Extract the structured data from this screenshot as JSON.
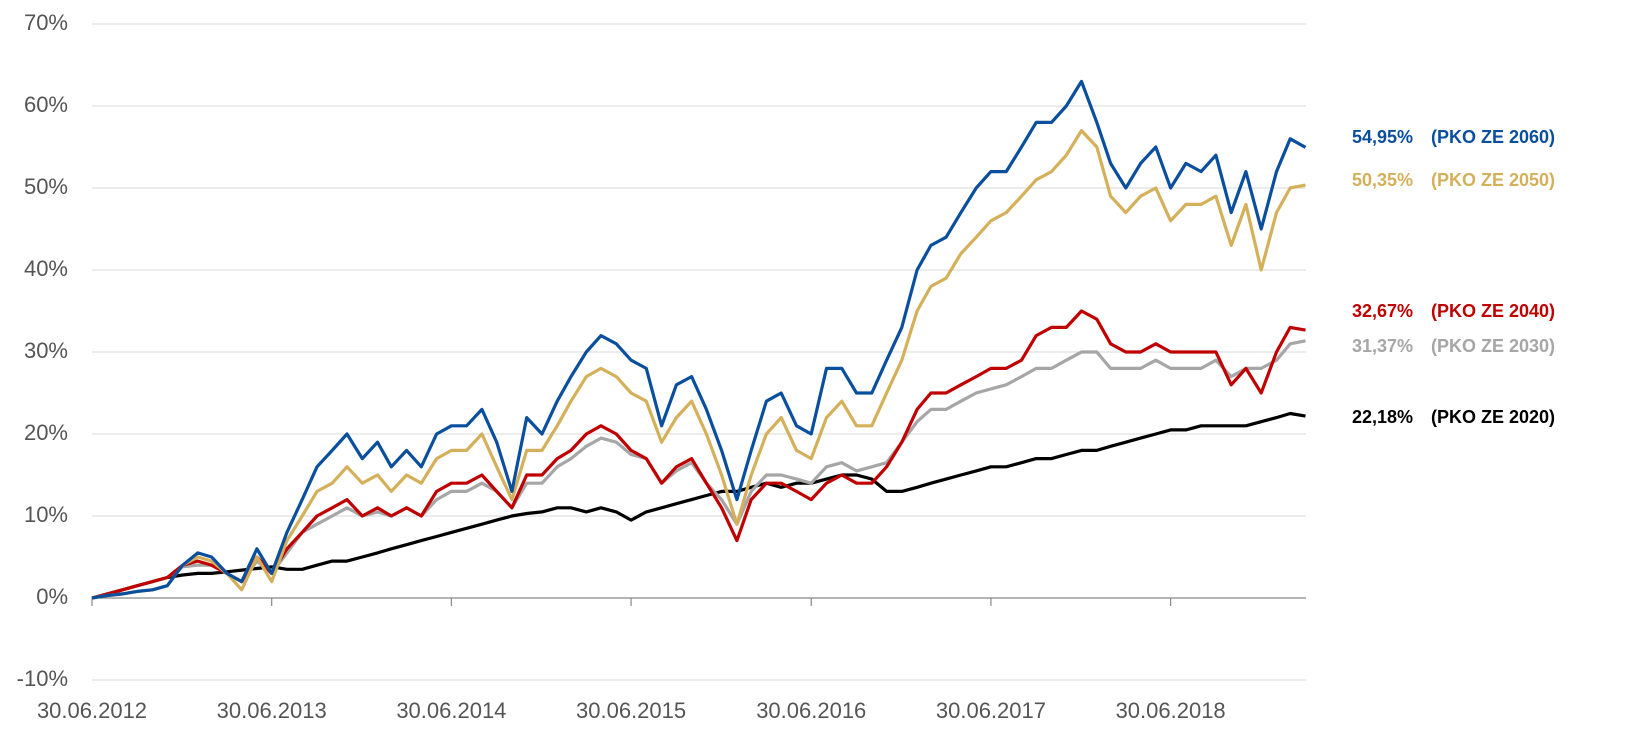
{
  "chart_data": {
    "type": "line",
    "x": [
      "2012-06-30",
      "2012-07-31",
      "2012-08-31",
      "2012-09-30",
      "2012-10-31",
      "2012-11-30",
      "2012-12-31",
      "2013-01-31",
      "2013-02-28",
      "2013-03-31",
      "2013-04-30",
      "2013-05-31",
      "2013-06-30",
      "2013-07-31",
      "2013-08-31",
      "2013-09-30",
      "2013-10-31",
      "2013-11-30",
      "2013-12-31",
      "2014-01-31",
      "2014-02-28",
      "2014-03-31",
      "2014-04-30",
      "2014-05-31",
      "2014-06-30",
      "2014-07-31",
      "2014-08-31",
      "2014-09-30",
      "2014-10-31",
      "2014-11-30",
      "2014-12-31",
      "2015-01-31",
      "2015-02-28",
      "2015-03-31",
      "2015-04-30",
      "2015-05-31",
      "2015-06-30",
      "2015-07-31",
      "2015-08-31",
      "2015-09-30",
      "2015-10-31",
      "2015-11-30",
      "2015-12-31",
      "2016-01-31",
      "2016-02-29",
      "2016-03-31",
      "2016-04-30",
      "2016-05-31",
      "2016-06-30",
      "2016-07-31",
      "2016-08-31",
      "2016-09-30",
      "2016-10-31",
      "2016-11-30",
      "2016-12-31",
      "2017-01-31",
      "2017-02-28",
      "2017-03-31",
      "2017-04-30",
      "2017-05-31",
      "2017-06-30",
      "2017-07-31",
      "2017-08-31",
      "2017-09-30",
      "2017-10-31",
      "2017-11-30",
      "2017-12-31",
      "2018-01-31",
      "2018-02-28",
      "2018-03-31",
      "2018-04-30",
      "2018-05-31",
      "2018-06-30",
      "2018-07-31",
      "2018-08-31",
      "2018-09-30",
      "2018-10-31",
      "2018-11-30",
      "2018-12-31",
      "2019-01-31",
      "2019-02-28",
      "2019-03-31"
    ],
    "series": [
      {
        "name": "(PKO ZE 2020)",
        "end_label": "22,18%",
        "color": "#000000",
        "values": [
          0,
          0.5,
          1,
          1.5,
          2,
          2.5,
          2.8,
          3,
          3,
          3.2,
          3.4,
          3.6,
          3.8,
          3.5,
          3.5,
          4,
          4.5,
          4.5,
          5,
          5.5,
          6,
          6.5,
          7,
          7.5,
          8,
          8.5,
          9,
          9.5,
          10,
          10.3,
          10.5,
          11,
          11,
          10.5,
          11,
          10.5,
          9.5,
          10.5,
          11,
          11.5,
          12,
          12.5,
          13,
          13,
          13.5,
          14,
          13.5,
          14,
          14,
          14.5,
          15,
          15,
          14.5,
          13,
          13,
          13.5,
          14,
          14.5,
          15,
          15.5,
          16,
          16,
          16.5,
          17,
          17,
          17.5,
          18,
          18,
          18.5,
          19,
          19.5,
          20,
          20.5,
          20.5,
          21,
          21,
          21,
          21,
          21.5,
          22,
          22.5,
          22.18
        ]
      },
      {
        "name": "(PKO ZE 2030)",
        "end_label": "31,37%",
        "color": "#a6a6a6",
        "values": [
          0,
          0.5,
          1,
          1.5,
          2,
          2.5,
          3.8,
          4,
          4,
          3,
          2,
          4.5,
          3,
          5.5,
          8,
          9,
          10,
          11,
          10,
          10.5,
          10,
          11,
          10,
          12,
          13,
          13,
          14,
          13,
          11,
          14,
          14,
          16,
          17,
          18.5,
          19.5,
          19,
          17.5,
          17,
          14,
          15.5,
          16.5,
          14,
          12,
          9,
          13,
          15,
          15,
          14.5,
          14,
          16,
          16.5,
          15.5,
          16,
          16.5,
          19,
          21.5,
          23,
          23,
          24,
          25,
          25.5,
          26,
          27,
          28,
          28,
          29,
          30,
          30,
          28,
          28,
          28,
          29,
          28,
          28,
          28,
          29,
          27,
          28,
          28,
          29,
          31,
          31.37
        ]
      },
      {
        "name": "(PKO ZE 2040)",
        "end_label": "32,67%",
        "color": "#c00000",
        "values": [
          0,
          0.5,
          1,
          1.5,
          2,
          2.5,
          4,
          4.5,
          4,
          3,
          2,
          5,
          3,
          6,
          8,
          10,
          11,
          12,
          10,
          11,
          10,
          11,
          10,
          13,
          14,
          14,
          15,
          13,
          11,
          15,
          15,
          17,
          18,
          20,
          21,
          20,
          18,
          17,
          14,
          16,
          17,
          14,
          11,
          7,
          12,
          14,
          14,
          13,
          12,
          14,
          15,
          14,
          14,
          16,
          19,
          23,
          25,
          25,
          26,
          27,
          28,
          28,
          29,
          32,
          33,
          33,
          35,
          34,
          31,
          30,
          30,
          31,
          30,
          30,
          30,
          30,
          26,
          28,
          25,
          30,
          33,
          32.67
        ]
      },
      {
        "name": "(PKO ZE 2050)",
        "end_label": "50,35%",
        "color": "#d4b05a",
        "values": [
          0,
          0.3,
          0.5,
          0.8,
          1,
          1.5,
          4,
          5,
          4.5,
          3,
          1,
          5,
          2,
          7,
          10,
          13,
          14,
          16,
          14,
          15,
          13,
          15,
          14,
          17,
          18,
          18,
          20,
          16,
          12,
          18,
          18,
          21,
          24,
          27,
          28,
          27,
          25,
          24,
          19,
          22,
          24,
          20,
          15,
          9,
          15,
          20,
          22,
          18,
          17,
          22,
          24,
          21,
          21,
          25,
          29,
          35,
          38,
          39,
          42,
          44,
          46,
          47,
          49,
          51,
          52,
          54,
          57,
          55,
          49,
          47,
          49,
          50,
          46,
          48,
          48,
          49,
          43,
          48,
          40,
          47,
          50,
          50.35
        ]
      },
      {
        "name": "(PKO ZE 2060)",
        "end_label": "54,95%",
        "color": "#0a4f9e",
        "values": [
          0,
          0.3,
          0.5,
          0.8,
          1,
          1.5,
          4,
          5.5,
          5,
          3,
          2,
          6,
          3,
          8,
          12,
          16,
          18,
          20,
          17,
          19,
          16,
          18,
          16,
          20,
          21,
          21,
          23,
          19,
          13,
          22,
          20,
          24,
          27,
          30,
          32,
          31,
          29,
          28,
          21,
          26,
          27,
          23,
          18,
          12,
          18,
          24,
          25,
          21,
          20,
          28,
          28,
          25,
          25,
          29,
          33,
          40,
          43,
          44,
          47,
          50,
          52,
          52,
          55,
          58,
          58,
          60,
          63,
          58,
          53,
          50,
          53,
          55,
          50,
          53,
          52,
          54,
          47,
          52,
          45,
          52,
          56,
          54.95
        ]
      }
    ],
    "xlim": [
      "2012-06-30",
      "2019-04-01"
    ],
    "xticks": [
      {
        "value": "2012-06-30",
        "label": "30.06.2012"
      },
      {
        "value": "2013-06-30",
        "label": "30.06.2013"
      },
      {
        "value": "2014-06-30",
        "label": "30.06.2014"
      },
      {
        "value": "2015-06-30",
        "label": "30.06.2015"
      },
      {
        "value": "2016-06-30",
        "label": "30.06.2016"
      },
      {
        "value": "2017-06-30",
        "label": "30.06.2017"
      },
      {
        "value": "2018-06-30",
        "label": "30.06.2018"
      }
    ],
    "ylim": [
      -10,
      70
    ],
    "yticks": [
      {
        "value": -10,
        "label": "-10%"
      },
      {
        "value": 0,
        "label": "0%"
      },
      {
        "value": 10,
        "label": "10%"
      },
      {
        "value": 20,
        "label": "20%"
      },
      {
        "value": 30,
        "label": "30%"
      },
      {
        "value": 40,
        "label": "40%"
      },
      {
        "value": 50,
        "label": "50%"
      },
      {
        "value": 60,
        "label": "60%"
      },
      {
        "value": 70,
        "label": "70%"
      }
    ],
    "grid": true
  }
}
